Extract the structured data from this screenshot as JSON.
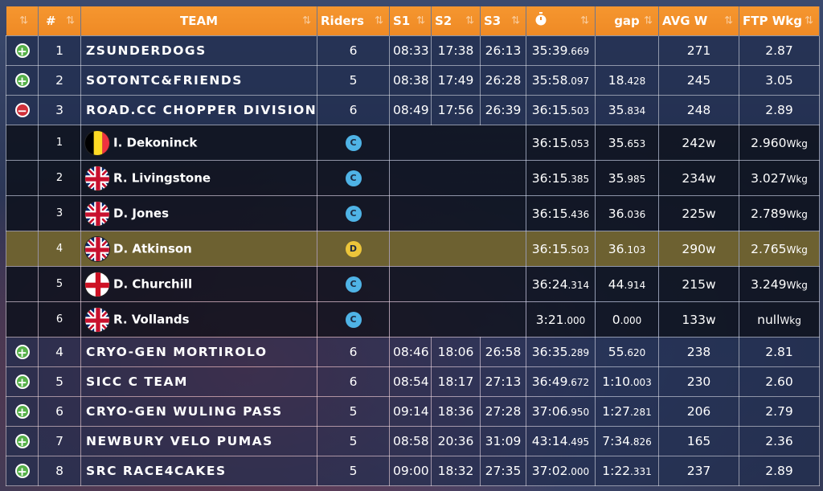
{
  "headers": {
    "rank": "#",
    "team": "TEAM",
    "riders": "Riders",
    "s1": "S1",
    "s2": "S2",
    "s3": "S3",
    "time_icon": "stopwatch-icon",
    "gap": "gap",
    "avg_w": "AVG W",
    "ftp_wkg": "FTP Wkg",
    "sort_glyph": "⇅"
  },
  "teams": [
    {
      "rank": "1",
      "name": "ZSUNDERDOGS",
      "riders": "6",
      "s1": "08:33",
      "s2": "17:38",
      "s3": "26:13",
      "time_main": "35:39",
      "time_ms": ".669",
      "gap_main": "",
      "gap_ms": "",
      "avg": "271",
      "ftp": "2.87",
      "toggle": "+"
    },
    {
      "rank": "2",
      "name": "SOTONTC&FRIENDS",
      "riders": "5",
      "s1": "08:38",
      "s2": "17:49",
      "s3": "26:28",
      "time_main": "35:58",
      "time_ms": ".097",
      "gap_main": "18",
      "gap_ms": ".428",
      "avg": "245",
      "ftp": "3.05",
      "toggle": "+"
    },
    {
      "rank": "3",
      "name": "ROAD.CC CHOPPER DIVISION",
      "riders": "6",
      "s1": "08:49",
      "s2": "17:56",
      "s3": "26:39",
      "time_main": "36:15",
      "time_ms": ".503",
      "gap_main": "35",
      "gap_ms": ".834",
      "avg": "248",
      "ftp": "2.89",
      "toggle": "−"
    }
  ],
  "riders": [
    {
      "pos": "1",
      "flag": "belgium",
      "name": "I. Dekoninck",
      "cat": "C",
      "time_main": "36:15",
      "time_ms": ".053",
      "gap_main": "35",
      "gap_ms": ".653",
      "avg": "242",
      "avg_unit": "w",
      "ftp": "2.960",
      "ftp_unit": "Wkg"
    },
    {
      "pos": "2",
      "flag": "uk",
      "name": "R. Livingstone",
      "cat": "C",
      "time_main": "36:15",
      "time_ms": ".385",
      "gap_main": "35",
      "gap_ms": ".985",
      "avg": "234",
      "avg_unit": "w",
      "ftp": "3.027",
      "ftp_unit": "Wkg"
    },
    {
      "pos": "3",
      "flag": "uk",
      "name": "D. Jones",
      "cat": "C",
      "time_main": "36:15",
      "time_ms": ".436",
      "gap_main": "36",
      "gap_ms": ".036",
      "avg": "225",
      "avg_unit": "w",
      "ftp": "2.789",
      "ftp_unit": "Wkg"
    },
    {
      "pos": "4",
      "flag": "uk",
      "name": "D. Atkinson",
      "cat": "D",
      "time_main": "36:15",
      "time_ms": ".503",
      "gap_main": "36",
      "gap_ms": ".103",
      "avg": "290",
      "avg_unit": "w",
      "ftp": "2.765",
      "ftp_unit": "Wkg"
    },
    {
      "pos": "5",
      "flag": "england",
      "name": "D. Churchill",
      "cat": "C",
      "time_main": "36:24",
      "time_ms": ".314",
      "gap_main": "44",
      "gap_ms": ".914",
      "avg": "215",
      "avg_unit": "w",
      "ftp": "3.249",
      "ftp_unit": "Wkg"
    },
    {
      "pos": "6",
      "flag": "uk",
      "name": "R. Vollands",
      "cat": "C",
      "time_main": "3:21",
      "time_ms": ".000",
      "gap_main": "0",
      "gap_ms": ".000",
      "avg": "133",
      "avg_unit": "w",
      "ftp": "null",
      "ftp_unit": "Wkg"
    }
  ],
  "teams_after": [
    {
      "rank": "4",
      "name": "CRYO-GEN MORTIROLO",
      "riders": "6",
      "s1": "08:46",
      "s2": "18:06",
      "s3": "26:58",
      "time_main": "36:35",
      "time_ms": ".289",
      "gap_main": "55",
      "gap_ms": ".620",
      "avg": "238",
      "ftp": "2.81",
      "toggle": "+"
    },
    {
      "rank": "5",
      "name": "SICC C TEAM",
      "riders": "6",
      "s1": "08:54",
      "s2": "18:17",
      "s3": "27:13",
      "time_main": "36:49",
      "time_ms": ".672",
      "gap_main": "1:10",
      "gap_ms": ".003",
      "avg": "230",
      "ftp": "2.60",
      "toggle": "+"
    },
    {
      "rank": "6",
      "name": "CRYO-GEN WULING PASS",
      "riders": "5",
      "s1": "09:14",
      "s2": "18:36",
      "s3": "27:28",
      "time_main": "37:06",
      "time_ms": ".950",
      "gap_main": "1:27",
      "gap_ms": ".281",
      "avg": "206",
      "ftp": "2.79",
      "toggle": "+"
    },
    {
      "rank": "7",
      "name": "NEWBURY VELO PUMAS",
      "riders": "5",
      "s1": "08:58",
      "s2": "20:36",
      "s3": "31:09",
      "time_main": "43:14",
      "time_ms": ".495",
      "gap_main": "7:34",
      "gap_ms": ".826",
      "avg": "165",
      "ftp": "2.36",
      "toggle": "+"
    },
    {
      "rank": "8",
      "name": "SRC RACE4CAKES",
      "riders": "5",
      "s1": "09:00",
      "s2": "18:32",
      "s3": "27:35",
      "time_main": "37:02",
      "time_ms": ".000",
      "gap_main": "1:22",
      "gap_ms": ".331",
      "avg": "237",
      "ftp": "2.89",
      "toggle": "+"
    }
  ],
  "colors": {
    "header": "#f28d28",
    "plus": "#57b04a",
    "minus": "#d0303a",
    "highlight": "#6d6131",
    "cat_c": "#4fb3e6",
    "cat_d": "#ecc53a"
  }
}
